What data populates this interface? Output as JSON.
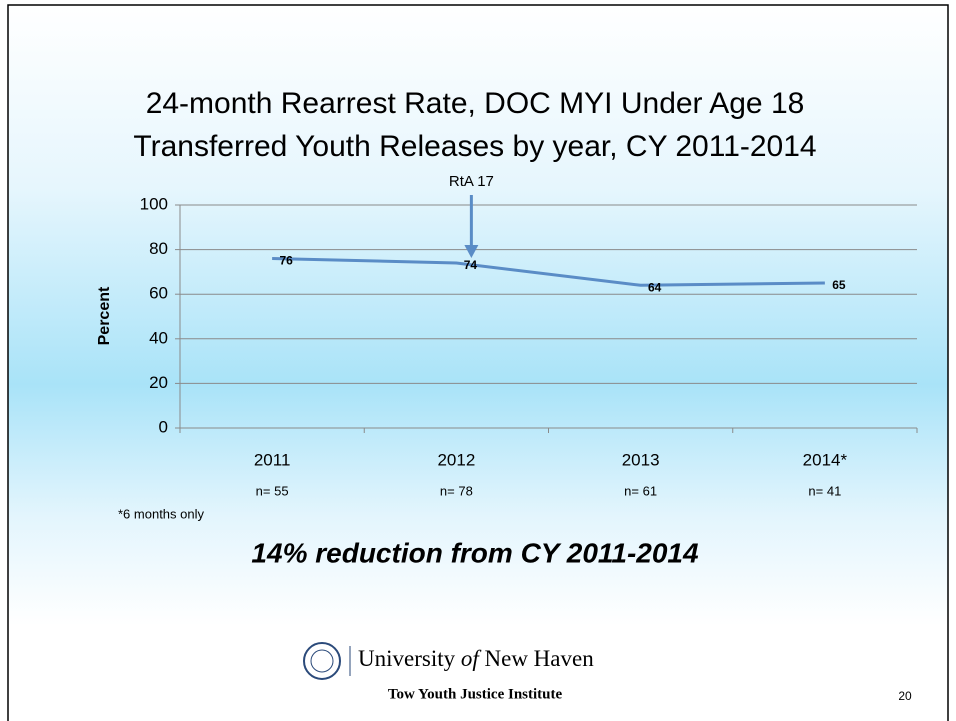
{
  "chart_data": {
    "type": "line",
    "title": [
      "24-month Rearrest Rate, DOC MYI Under Age 18",
      "Transferred Youth Releases by year, CY 2011-2014"
    ],
    "categories": [
      "2011",
      "2012",
      "2013",
      "2014*"
    ],
    "n_labels": [
      "n= 55",
      "n= 78",
      "n= 61",
      "n= 41"
    ],
    "values": [
      76,
      74,
      64,
      65
    ],
    "color": "#5a8cc6",
    "ylabel": "Percent",
    "ylim": [
      0,
      100
    ],
    "yticks": [
      0,
      20,
      40,
      60,
      80,
      100
    ],
    "grid": true,
    "annotation": {
      "text": "RtA 17",
      "category": 1
    },
    "footnote": "*6 months only",
    "summary": "14% reduction from CY 2011-2014"
  },
  "footer": {
    "university": [
      "University",
      "of",
      "New Haven"
    ],
    "institute": "Tow Youth Justice Institute",
    "page": "20"
  }
}
